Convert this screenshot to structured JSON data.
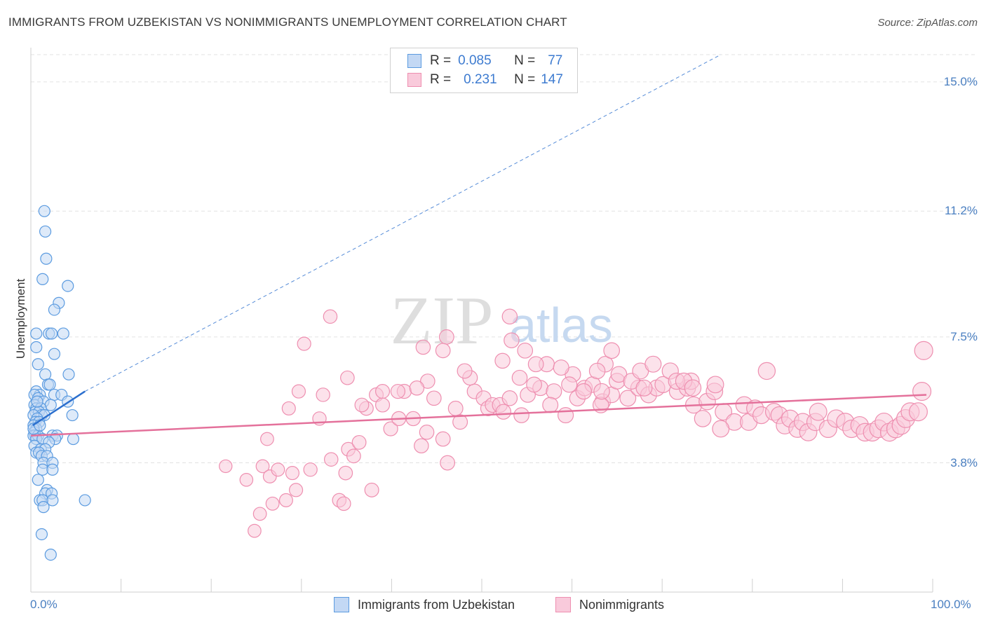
{
  "title": "IMMIGRANTS FROM UZBEKISTAN VS NONIMMIGRANTS UNEMPLOYMENT CORRELATION CHART",
  "source": "Source: ZipAtlas.com",
  "watermark": {
    "zip": "ZIP",
    "atlas": "atlas"
  },
  "legend": {
    "rows": [
      {
        "r_label": "R =",
        "r_value": "0.085",
        "n_label": "N =",
        "n_value": "77"
      },
      {
        "r_label": "R =",
        "r_value": "0.231",
        "n_label": "N =",
        "n_value": "147"
      }
    ]
  },
  "colors": {
    "blue": "#5b9be0",
    "blue_fill": "#c3d8f4",
    "blue_line": "#2b6fce",
    "pink": "#ee8fb0",
    "pink_fill": "#f9cadb",
    "pink_line": "#e4719b",
    "tick_text": "#4a7fc1"
  },
  "chart_data": {
    "type": "scatter",
    "title": "IMMIGRANTS FROM UZBEKISTAN VS NONIMMIGRANTS UNEMPLOYMENT CORRELATION CHART",
    "xlabel": "",
    "ylabel": "Unemployment",
    "xlim": [
      0,
      100
    ],
    "ylim": [
      0,
      15.8
    ],
    "x_tick_labels": [
      "0.0%",
      "100.0%"
    ],
    "y_ticks": [
      3.8,
      7.5,
      11.2,
      15.0
    ],
    "y_tick_labels": [
      "3.8%",
      "7.5%",
      "11.2%",
      "15.0%"
    ],
    "grid": true,
    "legend_position": "top-center",
    "series": [
      {
        "name": "Immigrants from Uzbekistan",
        "color": "#5b9be0",
        "points": [
          [
            1.5,
            11.2
          ],
          [
            1.6,
            10.6
          ],
          [
            1.7,
            9.8
          ],
          [
            1.3,
            9.2
          ],
          [
            4.1,
            9.0
          ],
          [
            3.1,
            8.5
          ],
          [
            2.6,
            8.3
          ],
          [
            2.0,
            7.6
          ],
          [
            2.3,
            7.6
          ],
          [
            3.6,
            7.6
          ],
          [
            0.6,
            7.6
          ],
          [
            0.6,
            7.2
          ],
          [
            2.6,
            7.0
          ],
          [
            0.8,
            6.7
          ],
          [
            1.6,
            6.4
          ],
          [
            4.2,
            6.4
          ],
          [
            1.9,
            6.1
          ],
          [
            2.1,
            6.1
          ],
          [
            0.6,
            5.9
          ],
          [
            1.0,
            5.8
          ],
          [
            0.4,
            5.8
          ],
          [
            2.6,
            5.8
          ],
          [
            3.4,
            5.8
          ],
          [
            0.8,
            5.7
          ],
          [
            1.4,
            5.6
          ],
          [
            4.1,
            5.6
          ],
          [
            0.4,
            5.5
          ],
          [
            2.2,
            5.5
          ],
          [
            0.6,
            5.4
          ],
          [
            1.1,
            5.4
          ],
          [
            0.5,
            5.3
          ],
          [
            0.9,
            5.3
          ],
          [
            1.2,
            5.2
          ],
          [
            0.3,
            5.2
          ],
          [
            1.5,
            5.2
          ],
          [
            0.7,
            5.1
          ],
          [
            4.6,
            5.2
          ],
          [
            0.5,
            5.0
          ],
          [
            0.9,
            5.0
          ],
          [
            0.3,
            4.9
          ],
          [
            0.6,
            4.8
          ],
          [
            0.4,
            4.7
          ],
          [
            0.5,
            4.6
          ],
          [
            0.3,
            4.6
          ],
          [
            0.8,
            4.6
          ],
          [
            2.4,
            4.6
          ],
          [
            2.9,
            4.6
          ],
          [
            0.6,
            4.5
          ],
          [
            2.7,
            4.5
          ],
          [
            4.7,
            4.5
          ],
          [
            1.3,
            4.5
          ],
          [
            2.0,
            4.4
          ],
          [
            0.4,
            4.3
          ],
          [
            1.1,
            4.2
          ],
          [
            1.6,
            4.2
          ],
          [
            0.6,
            4.1
          ],
          [
            0.9,
            4.1
          ],
          [
            1.2,
            4.0
          ],
          [
            1.8,
            4.0
          ],
          [
            1.4,
            3.8
          ],
          [
            2.4,
            3.8
          ],
          [
            1.3,
            3.6
          ],
          [
            2.4,
            3.6
          ],
          [
            0.8,
            3.3
          ],
          [
            1.8,
            3.0
          ],
          [
            1.6,
            2.9
          ],
          [
            2.3,
            2.9
          ],
          [
            1.0,
            2.7
          ],
          [
            1.3,
            2.7
          ],
          [
            2.4,
            2.7
          ],
          [
            6.0,
            2.7
          ],
          [
            1.4,
            2.5
          ],
          [
            1.2,
            1.7
          ],
          [
            2.2,
            1.1
          ],
          [
            0.3,
            4.8
          ],
          [
            0.7,
            5.6
          ],
          [
            1.0,
            4.9
          ]
        ]
      },
      {
        "name": "Nonimmigrants",
        "color": "#ee8fb0",
        "points": [
          [
            21.6,
            3.7
          ],
          [
            23.9,
            3.3
          ],
          [
            24.8,
            1.8
          ],
          [
            25.4,
            2.3
          ],
          [
            25.7,
            3.7
          ],
          [
            26.5,
            3.4
          ],
          [
            26.8,
            2.6
          ],
          [
            27.4,
            3.6
          ],
          [
            28.3,
            2.7
          ],
          [
            29.0,
            3.5
          ],
          [
            29.4,
            3.0
          ],
          [
            31.0,
            3.6
          ],
          [
            26.2,
            4.5
          ],
          [
            29.7,
            5.9
          ],
          [
            28.6,
            5.4
          ],
          [
            33.3,
            3.9
          ],
          [
            34.2,
            2.7
          ],
          [
            34.7,
            2.6
          ],
          [
            35.2,
            4.2
          ],
          [
            35.8,
            4.0
          ],
          [
            36.4,
            4.4
          ],
          [
            37.2,
            5.4
          ],
          [
            37.8,
            3.0
          ],
          [
            38.3,
            5.8
          ],
          [
            39.0,
            5.9
          ],
          [
            39.9,
            4.8
          ],
          [
            40.8,
            5.1
          ],
          [
            41.4,
            5.9
          ],
          [
            42.4,
            5.1
          ],
          [
            43.3,
            4.3
          ],
          [
            43.9,
            4.7
          ],
          [
            44.7,
            5.7
          ],
          [
            45.7,
            4.5
          ],
          [
            46.2,
            3.8
          ],
          [
            47.1,
            5.4
          ],
          [
            47.6,
            5.0
          ],
          [
            49.2,
            5.9
          ],
          [
            50.2,
            5.7
          ],
          [
            50.7,
            5.4
          ],
          [
            51.2,
            5.5
          ],
          [
            52.0,
            5.5
          ],
          [
            52.4,
            5.3
          ],
          [
            53.1,
            5.7
          ],
          [
            54.4,
            5.2
          ],
          [
            55.1,
            5.8
          ],
          [
            56.5,
            6.0
          ],
          [
            58.0,
            5.9
          ],
          [
            57.6,
            5.5
          ],
          [
            59.3,
            5.2
          ],
          [
            60.6,
            5.7
          ],
          [
            61.4,
            6.0
          ],
          [
            62.3,
            6.1
          ],
          [
            63.4,
            5.6
          ],
          [
            64.4,
            5.8
          ],
          [
            65.0,
            6.2
          ],
          [
            66.2,
            5.7
          ],
          [
            67.4,
            6.0
          ],
          [
            68.5,
            5.8
          ],
          [
            69.4,
            6.0
          ],
          [
            70.1,
            6.1
          ],
          [
            71.7,
            5.9
          ],
          [
            72.8,
            6.0
          ],
          [
            73.5,
            5.5
          ],
          [
            74.5,
            5.1
          ],
          [
            75.0,
            5.6
          ],
          [
            75.8,
            5.9
          ],
          [
            76.8,
            5.3
          ],
          [
            78.0,
            5.0
          ],
          [
            79.1,
            5.5
          ],
          [
            79.6,
            5.0
          ],
          [
            80.3,
            5.4
          ],
          [
            81.0,
            5.2
          ],
          [
            82.4,
            5.3
          ],
          [
            83.0,
            5.2
          ],
          [
            83.6,
            4.9
          ],
          [
            84.2,
            5.1
          ],
          [
            85.0,
            4.8
          ],
          [
            85.6,
            5.0
          ],
          [
            86.2,
            4.7
          ],
          [
            87.0,
            5.0
          ],
          [
            88.4,
            4.8
          ],
          [
            89.3,
            5.1
          ],
          [
            90.3,
            5.0
          ],
          [
            91.0,
            4.8
          ],
          [
            91.9,
            4.9
          ],
          [
            92.5,
            4.7
          ],
          [
            93.3,
            4.7
          ],
          [
            94.0,
            4.8
          ],
          [
            94.6,
            5.0
          ],
          [
            95.2,
            4.7
          ],
          [
            95.9,
            4.8
          ],
          [
            96.5,
            4.9
          ],
          [
            97.0,
            5.1
          ],
          [
            97.5,
            5.3
          ],
          [
            98.4,
            5.3
          ],
          [
            98.8,
            5.9
          ],
          [
            99.0,
            7.1
          ],
          [
            87.3,
            5.3
          ],
          [
            81.6,
            6.5
          ],
          [
            73.2,
            6.2
          ],
          [
            75.9,
            6.1
          ],
          [
            70.9,
            6.5
          ],
          [
            65.2,
            6.4
          ],
          [
            61.3,
            5.9
          ],
          [
            57.2,
            6.7
          ],
          [
            54.2,
            6.3
          ],
          [
            52.3,
            6.8
          ],
          [
            53.1,
            8.1
          ],
          [
            54.8,
            7.1
          ],
          [
            56.0,
            6.7
          ],
          [
            63.7,
            6.7
          ],
          [
            64.4,
            7.1
          ],
          [
            62.8,
            6.5
          ],
          [
            63.2,
            5.5
          ],
          [
            66.6,
            6.2
          ],
          [
            67.6,
            6.5
          ],
          [
            69.0,
            6.7
          ],
          [
            71.6,
            6.2
          ],
          [
            72.4,
            6.2
          ],
          [
            73.4,
            6.0
          ],
          [
            68.0,
            6.0
          ],
          [
            63.3,
            5.9
          ],
          [
            60.1,
            6.4
          ],
          [
            58.8,
            6.6
          ],
          [
            55.8,
            6.1
          ],
          [
            53.3,
            7.4
          ],
          [
            59.7,
            6.1
          ],
          [
            48.7,
            6.3
          ],
          [
            44.0,
            6.2
          ],
          [
            42.8,
            6.0
          ],
          [
            40.7,
            5.9
          ],
          [
            39.0,
            5.5
          ],
          [
            36.7,
            5.5
          ],
          [
            35.1,
            6.3
          ],
          [
            32.0,
            5.1
          ],
          [
            34.9,
            3.5
          ],
          [
            30.3,
            7.3
          ],
          [
            43.5,
            7.2
          ],
          [
            46.1,
            7.5
          ],
          [
            45.7,
            7.1
          ],
          [
            33.2,
            8.1
          ],
          [
            32.4,
            5.8
          ],
          [
            48.1,
            6.5
          ],
          [
            76.5,
            4.8
          ]
        ]
      }
    ],
    "trend_lines": [
      {
        "series": "Immigrants from Uzbekistan",
        "solid": [
          [
            0.2,
            4.9
          ],
          [
            6.0,
            5.9
          ]
        ],
        "dashed_to": [
          76.5,
          15.8
        ]
      },
      {
        "series": "Nonimmigrants",
        "solid": [
          [
            0,
            4.6
          ],
          [
            99.3,
            5.8
          ]
        ]
      }
    ]
  }
}
